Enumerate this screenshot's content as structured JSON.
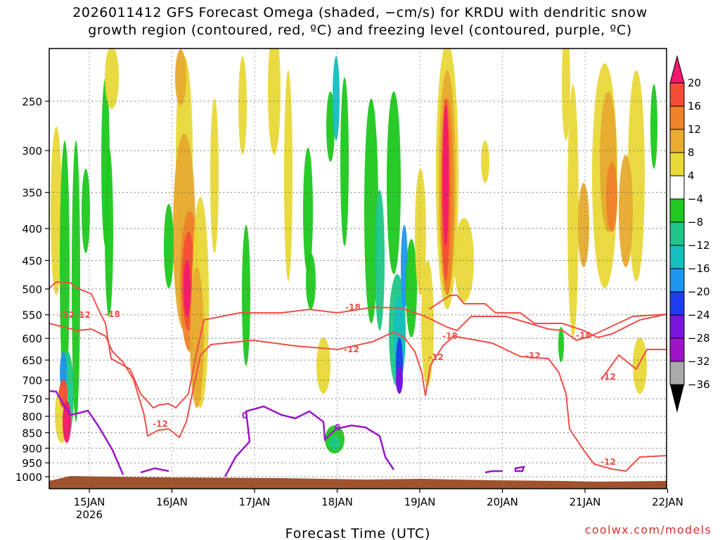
{
  "title_line1": "2026011412 GFS Forecast Omega (shaded, −cm/s) for KRDU with dendritic snow",
  "title_line2": "growth region (contoured, red, ºC) and freezing level (contoured, purple, ºC)",
  "credit": "coolwx.com/models",
  "colors": {
    "ground": "#a0522d",
    "dgz_contour": "#f04e46",
    "freezing_contour": "#9a16c6",
    "grid": "#555555"
  },
  "chart_data": {
    "type": "heatmap",
    "xlabel": "Forecast Time (UTC)",
    "ylabel": "",
    "x_ticks": [
      "15JAN",
      "16JAN",
      "17JAN",
      "18JAN",
      "19JAN",
      "20JAN",
      "21JAN",
      "22JAN"
    ],
    "x_tick_year": "2026",
    "y_ticks": [
      250,
      300,
      350,
      400,
      450,
      500,
      550,
      600,
      650,
      700,
      750,
      800,
      850,
      900,
      950,
      1000
    ],
    "y_scale": "log",
    "ylim": [
      1020,
      200
    ],
    "xlim": [
      "2026-01-14 12Z",
      "2026-01-22 00Z"
    ],
    "colorbar": {
      "labels": [
        "20",
        "16",
        "12",
        "8",
        "4",
        "−4",
        "−8",
        "−12",
        "−16",
        "−20",
        "−24",
        "−28",
        "−32",
        "−36"
      ],
      "colors": [
        "#f2186f",
        "#f54d35",
        "#f0822a",
        "#e6ab2f",
        "#e8d838",
        "#ffffff",
        "#1ec81e",
        "#1ec787",
        "#14bfc0",
        "#1e96f0",
        "#1e3cf0",
        "#7814dc",
        "#a014c8",
        "#aaaaaa"
      ]
    },
    "contour_labels": [
      {
        "label": "-12",
        "series": "dgz"
      },
      {
        "label": "-18",
        "series": "dgz"
      },
      {
        "label": "-12",
        "series": "dgz"
      },
      {
        "label": "-18",
        "series": "dgz"
      },
      {
        "label": "-12",
        "series": "dgz"
      },
      {
        "label": "-18",
        "series": "dgz"
      },
      {
        "label": "-12",
        "series": "dgz"
      },
      {
        "label": "-12",
        "series": "dgz"
      },
      {
        "label": "-18",
        "series": "dgz"
      },
      {
        "label": "-12",
        "series": "dgz"
      },
      {
        "label": "-12",
        "series": "dgz"
      },
      {
        "label": "-12",
        "series": "dgz"
      },
      {
        "label": "0",
        "series": "freezing"
      },
      {
        "label": "0",
        "series": "freezing"
      }
    ]
  }
}
